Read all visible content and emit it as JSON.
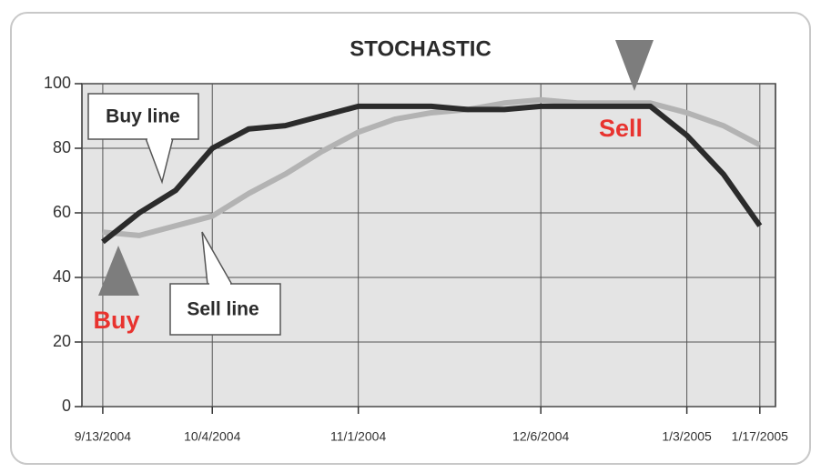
{
  "chart_data": {
    "type": "line",
    "title": "STOCHASTIC",
    "x": [
      "2004-09-13",
      "2004-09-20",
      "2004-09-27",
      "2004-10-04",
      "2004-10-11",
      "2004-10-18",
      "2004-10-25",
      "2004-11-01",
      "2004-11-08",
      "2004-11-15",
      "2004-11-22",
      "2004-11-29",
      "2004-12-06",
      "2004-12-13",
      "2004-12-20",
      "2004-12-27",
      "2005-01-03",
      "2005-01-10",
      "2005-01-17"
    ],
    "series": [
      {
        "name": "Buy line",
        "color": "#2b2b2b",
        "values": [
          51,
          60,
          67,
          80,
          86,
          87,
          90,
          93,
          93,
          93,
          92,
          92,
          93,
          93,
          93,
          93,
          84,
          72,
          56
        ]
      },
      {
        "name": "Sell line",
        "color": "#b3b3b3",
        "values": [
          54,
          53,
          56,
          59,
          66,
          72,
          79,
          85,
          89,
          91,
          92,
          94,
          95,
          94,
          94,
          94,
          91,
          87,
          81
        ]
      }
    ],
    "xlim": [
      "2004-09-09",
      "2005-01-20"
    ],
    "xticks": [
      {
        "value": "2004-09-13",
        "label": "9/13/2004"
      },
      {
        "value": "2004-10-04",
        "label": "10/4/2004"
      },
      {
        "value": "2004-11-01",
        "label": "11/1/2004"
      },
      {
        "value": "2004-12-06",
        "label": "12/6/2004"
      },
      {
        "value": "2005-01-03",
        "label": "1/3/2005"
      },
      {
        "value": "2005-01-17",
        "label": "1/17/2005"
      }
    ],
    "ylim": [
      0,
      100
    ],
    "yticks": [
      0,
      20,
      40,
      60,
      80,
      100
    ],
    "grid": true,
    "annotations": [
      "Buy",
      "Sell"
    ]
  }
}
